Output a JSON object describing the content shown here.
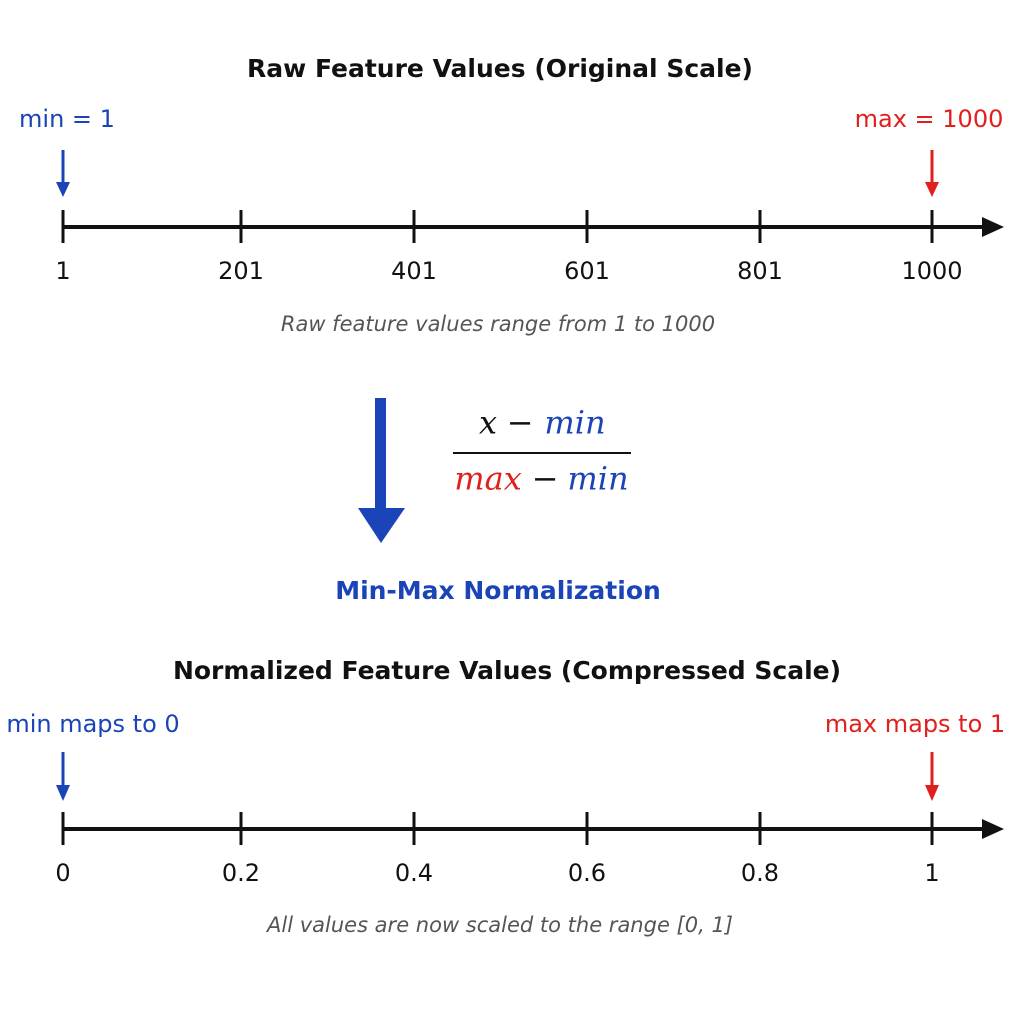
{
  "top": {
    "title": "Raw Feature Values (Original Scale)",
    "min_label": "min = 1",
    "max_label": "max = 1000",
    "ticks": [
      "1",
      "201",
      "401",
      "601",
      "801",
      "1000"
    ],
    "caption": "Raw feature values range from 1 to 1000"
  },
  "transform": {
    "formula": {
      "numerator": [
        "x",
        "−",
        "min"
      ],
      "denominator": [
        "max",
        "−",
        "min"
      ]
    },
    "label": "Min-Max Normalization"
  },
  "bottom": {
    "title": "Normalized Feature Values (Compressed Scale)",
    "min_label": "min maps to 0",
    "max_label": "max maps to 1",
    "ticks": [
      "0",
      "0.2",
      "0.4",
      "0.6",
      "0.8",
      "1"
    ],
    "caption": "All values are now scaled to the range [0, 1]"
  }
}
